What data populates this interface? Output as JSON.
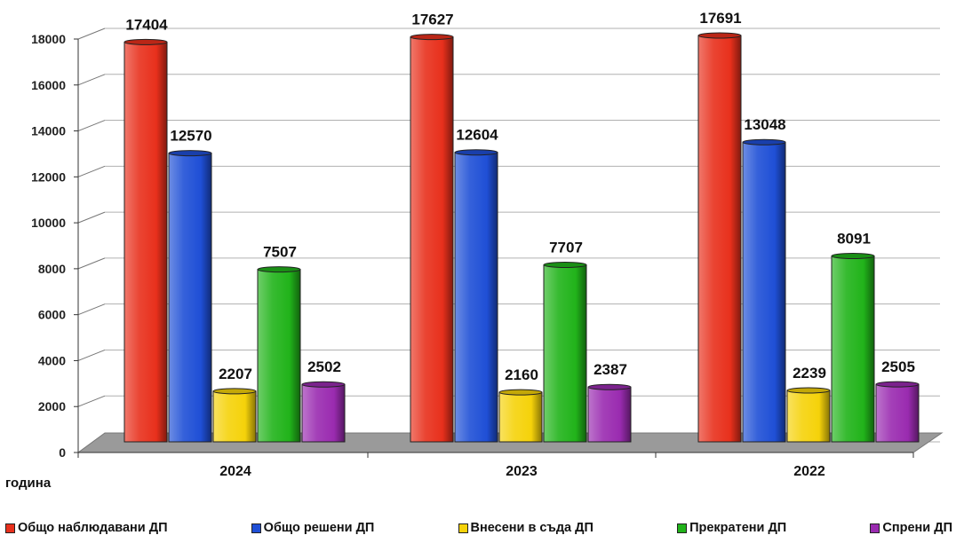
{
  "chart_data": {
    "type": "bar",
    "categories": [
      "2024",
      "2023",
      "2022"
    ],
    "series": [
      {
        "name": "Общо наблюдавани ДП",
        "values": [
          17404,
          17627,
          17691
        ],
        "color": "#e8301c"
      },
      {
        "name": "Общо решени ДП",
        "values": [
          12570,
          12604,
          13048
        ],
        "color": "#1f4fd6"
      },
      {
        "name": "Внесени в съда ДП",
        "values": [
          2207,
          2160,
          2239
        ],
        "color": "#f5d20a"
      },
      {
        "name": "Прекратени ДП",
        "values": [
          7507,
          7707,
          8091
        ],
        "color": "#21b31a"
      },
      {
        "name": "Спрени ДП",
        "values": [
          2502,
          2387,
          2505
        ],
        "color": "#9a2bb0"
      }
    ],
    "yticks": [
      "0",
      "2000",
      "4000",
      "6000",
      "8000",
      "10000",
      "12000",
      "14000",
      "16000",
      "18000"
    ],
    "ylim": [
      0,
      18000
    ],
    "xlabel": "година",
    "ylabel": "",
    "grid": true,
    "legend_position": "bottom",
    "style": "3d-cylinder"
  }
}
